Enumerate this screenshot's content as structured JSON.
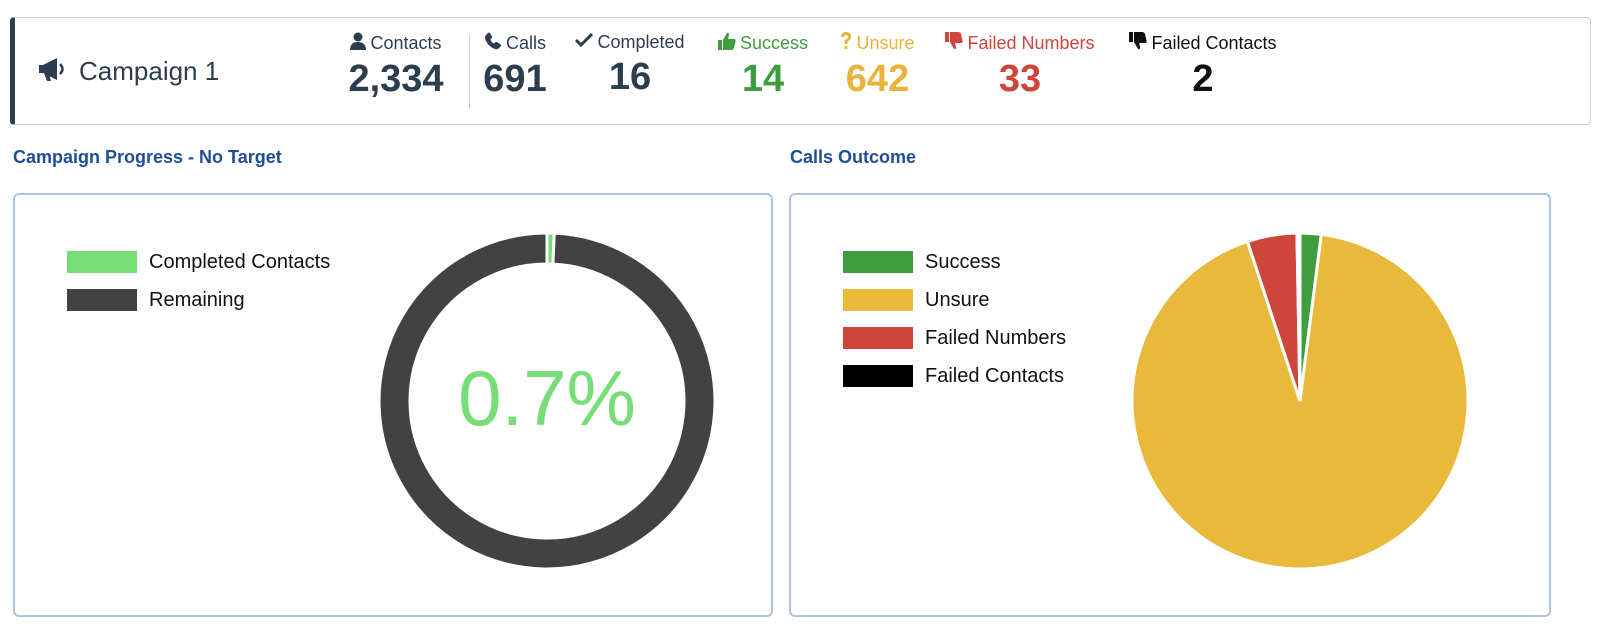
{
  "campaign": {
    "title": "Campaign 1",
    "icon": "megaphone-icon"
  },
  "stats": [
    {
      "key": "contacts",
      "label": "Contacts",
      "value": "2,334",
      "icon": "user-icon",
      "label_color": "#2b3d4f",
      "value_color": "#2b3d4f"
    },
    {
      "key": "calls",
      "label": "Calls",
      "value": "691",
      "icon": "phone-icon",
      "label_color": "#2b3d4f",
      "value_color": "#2b3d4f"
    },
    {
      "key": "completed",
      "label": "Completed",
      "value": "16",
      "icon": "check-icon",
      "label_color": "#2b3d4f",
      "value_color": "#2b3d4f"
    },
    {
      "key": "success",
      "label": "Success",
      "value": "14",
      "icon": "thumbs-up-icon",
      "label_color": "#3f9d3f",
      "value_color": "#3f9d3f"
    },
    {
      "key": "unsure",
      "label": "Unsure",
      "value": "642",
      "icon": "question-icon",
      "label_color": "#e9b23b",
      "value_color": "#e9b23b"
    },
    {
      "key": "failed_numbers",
      "label": "Failed Numbers",
      "value": "33",
      "icon": "thumbs-down-icon",
      "label_color": "#d0453b",
      "value_color": "#d0453b"
    },
    {
      "key": "failed_contacts",
      "label": "Failed Contacts",
      "value": "2",
      "icon": "thumbs-down-icon",
      "label_color": "#111111",
      "value_color": "#111111"
    }
  ],
  "progress_section": {
    "title": "Campaign Progress - No Target"
  },
  "outcome_section": {
    "title": "Calls Outcome"
  },
  "chart_data": [
    {
      "type": "pie",
      "variant": "doughnut",
      "center_label": "0.7%",
      "categories": [
        "Completed Contacts",
        "Remaining"
      ],
      "values": [
        16,
        2318
      ],
      "colors": [
        "#77dd77",
        "#424242"
      ],
      "legend_position": "top-left"
    },
    {
      "type": "pie",
      "categories": [
        "Success",
        "Unsure",
        "Failed Numbers",
        "Failed Contacts"
      ],
      "values": [
        14,
        642,
        33,
        2
      ],
      "colors": [
        "#3f9d3f",
        "#e9b93b",
        "#d0453b",
        "#000000"
      ],
      "legend_position": "top-left"
    }
  ]
}
